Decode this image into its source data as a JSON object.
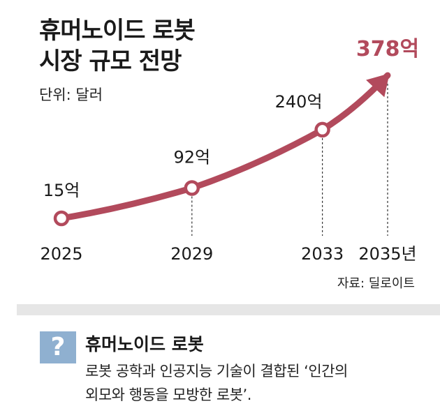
{
  "title_line1": "휴머노이드 로봇",
  "title_line2": "시장 규모 전망",
  "unit": "단위: 달러",
  "source": "자료: 딜로이트",
  "definition": {
    "icon": "question-mark-icon",
    "icon_text": "?",
    "term": "휴머노이드 로봇",
    "text_line1": "로봇 공학과 인공지능 기술이 결합된 ‘인간의",
    "text_line2": "외모와 행동을 모방한 로봇’."
  },
  "colors": {
    "line": "#b24a5c",
    "highlight": "#b24a5c",
    "qbox": "#8fb0d0"
  },
  "chart_data": {
    "type": "line",
    "categories": [
      "2025",
      "2029",
      "2033",
      "2035년"
    ],
    "x": [
      2025,
      2029,
      2033,
      2035
    ],
    "values": [
      15,
      92,
      240,
      378
    ],
    "value_labels": [
      "15억",
      "92억",
      "240억",
      "378억"
    ],
    "unit": "단위: 달러",
    "grid": false,
    "legend": "none"
  }
}
